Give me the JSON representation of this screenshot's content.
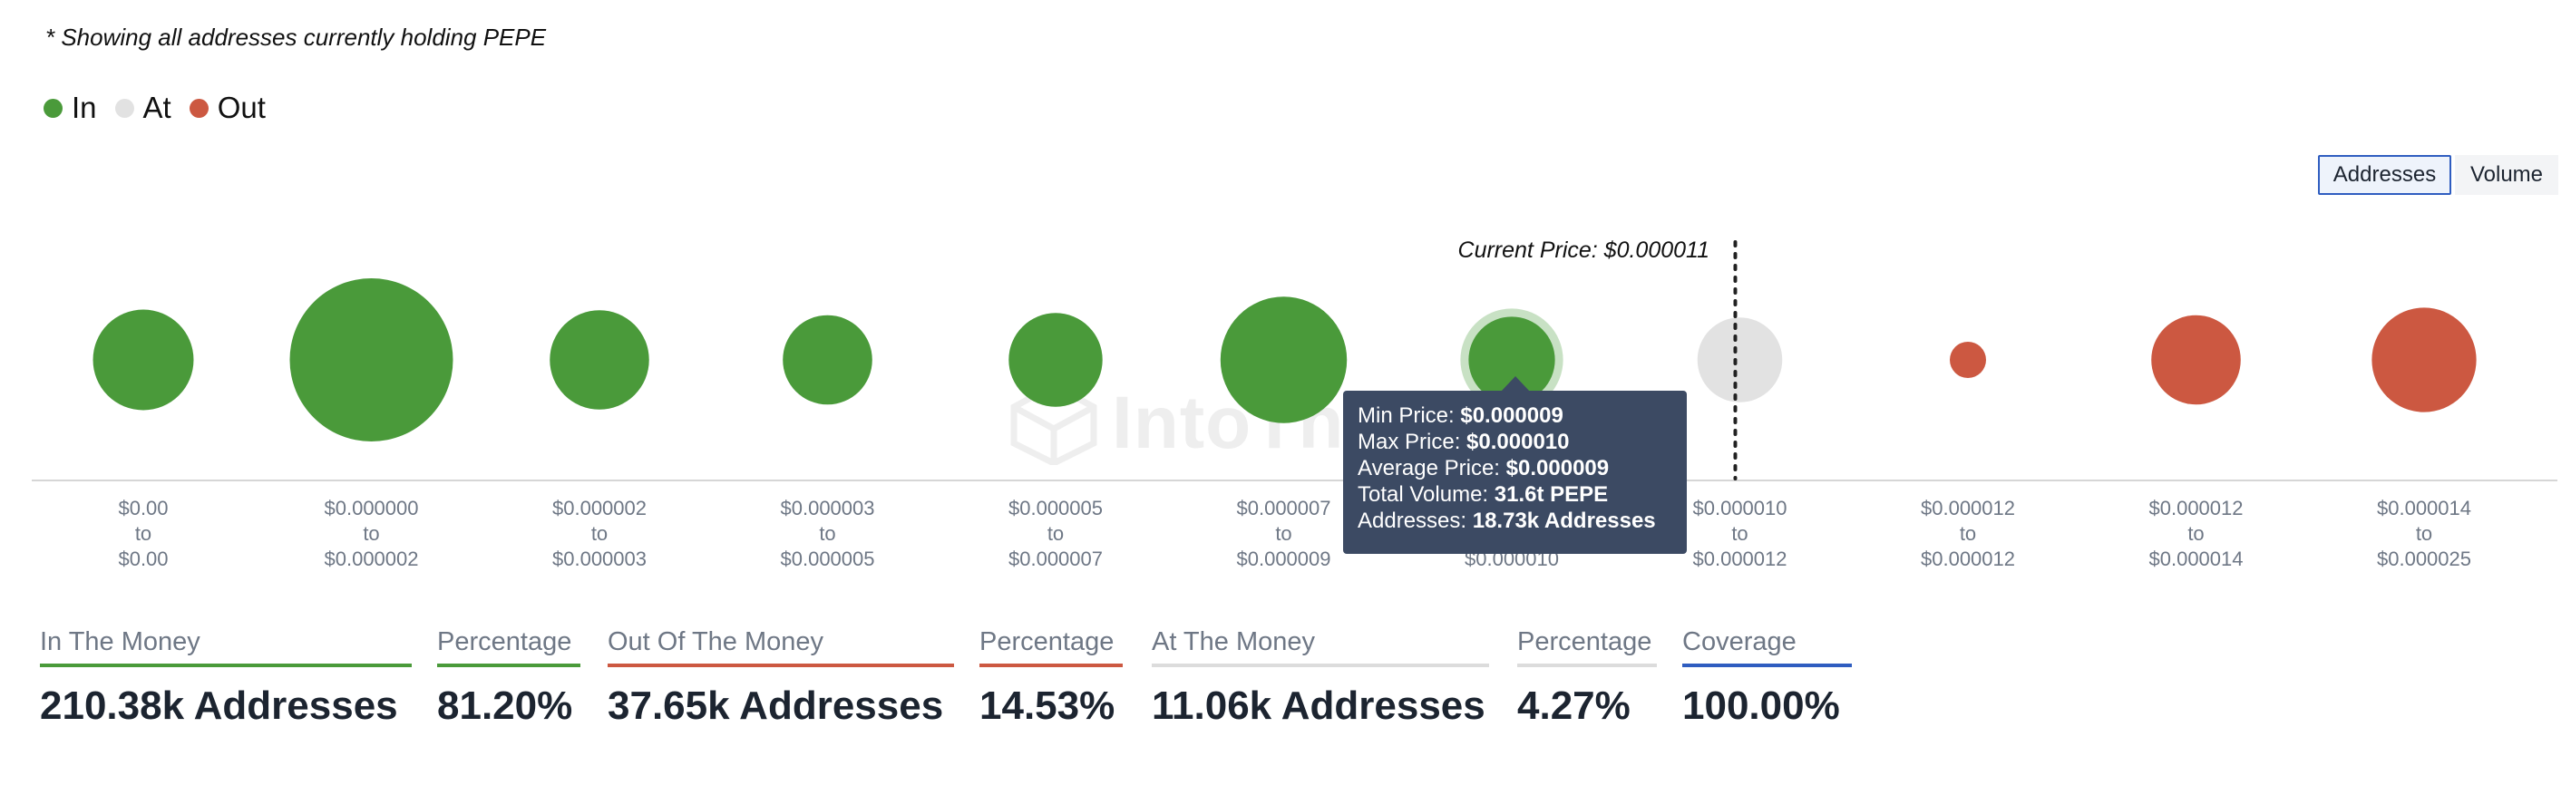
{
  "note": "* Showing all addresses currently holding PEPE",
  "legend": [
    {
      "label": "In",
      "color": "#4a9a3a"
    },
    {
      "label": "At",
      "color": "#e2e2e2"
    },
    {
      "label": "Out",
      "color": "#cc5841"
    }
  ],
  "toggle": {
    "addresses": "Addresses",
    "volume": "Volume",
    "selected": "Addresses"
  },
  "current_price": "Current Price: $0.000011",
  "watermark": "IntoThe",
  "tooltip": {
    "min_label": "Min Price:",
    "min_value": "$0.000009",
    "max_label": "Max Price:",
    "max_value": "$0.000010",
    "avg_label": "Average Price:",
    "avg_value": "$0.000009",
    "vol_label": "Total Volume:",
    "vol_value": "31.6t PEPE",
    "addr_label": "Addresses:",
    "addr_value": "18.73k Addresses"
  },
  "chart_data": {
    "type": "bubble",
    "title": "",
    "highlighted_index": 6,
    "current_price_between": [
      6,
      7
    ],
    "categories": [
      {
        "from": "$0.00",
        "to": "$0.00",
        "status": "In",
        "relative_size": 0.38
      },
      {
        "from": "$0.000000",
        "to": "$0.000002",
        "status": "In",
        "relative_size": 1.0
      },
      {
        "from": "$0.000002",
        "to": "$0.000003",
        "status": "In",
        "relative_size": 0.37
      },
      {
        "from": "$0.000003",
        "to": "$0.000005",
        "status": "In",
        "relative_size": 0.3
      },
      {
        "from": "$0.000005",
        "to": "$0.000007",
        "status": "In",
        "relative_size": 0.33
      },
      {
        "from": "$0.000007",
        "to": "$0.000009",
        "status": "In",
        "relative_size": 0.6
      },
      {
        "from": "$0.000009",
        "to": "$0.000010",
        "status": "In",
        "relative_size": 0.28,
        "addresses": "18.73k Addresses",
        "volume": "31.6t PEPE"
      },
      {
        "from": "$0.000010",
        "to": "$0.000012",
        "status": "At",
        "relative_size": 0.27
      },
      {
        "from": "$0.000012",
        "to": "$0.000012",
        "status": "Out",
        "relative_size": 0.04
      },
      {
        "from": "$0.000012",
        "to": "$0.000014",
        "status": "Out",
        "relative_size": 0.3
      },
      {
        "from": "$0.000014",
        "to": "$0.000025",
        "status": "Out",
        "relative_size": 0.41
      }
    ],
    "to_word": "to"
  },
  "stats": [
    {
      "label": "In The Money",
      "value": "210.38k Addresses",
      "color": "#4a9a3a"
    },
    {
      "label": "Percentage",
      "value": "81.20%",
      "color": "#4a9a3a"
    },
    {
      "label": "Out Of The Money",
      "value": "37.65k Addresses",
      "color": "#cc5841"
    },
    {
      "label": "Percentage",
      "value": "14.53%",
      "color": "#cc5841"
    },
    {
      "label": "At The Money",
      "value": "11.06k Addresses",
      "color": "#dcdcdc"
    },
    {
      "label": "Percentage",
      "value": "4.27%",
      "color": "#dcdcdc"
    },
    {
      "label": "Coverage",
      "value": "100.00%",
      "color": "#2f5dc0"
    }
  ]
}
